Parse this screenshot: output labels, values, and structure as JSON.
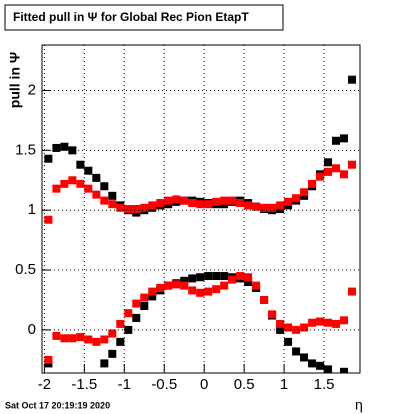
{
  "chart_data": {
    "type": "scatter",
    "title": "Fitted pull in  Ψ  for Global Rec Pion EtapT",
    "x_label": "η",
    "y_label": "pull in  Ψ",
    "footer": "Sat Oct 17 20:19:19 2020",
    "x": [
      -1.95,
      -1.85,
      -1.75,
      -1.65,
      -1.55,
      -1.45,
      -1.35,
      -1.25,
      -1.15,
      -1.05,
      -0.95,
      -0.85,
      -0.75,
      -0.65,
      -0.55,
      -0.45,
      -0.35,
      -0.25,
      -0.15,
      -0.05,
      0.05,
      0.15,
      0.25,
      0.35,
      0.45,
      0.55,
      0.65,
      0.75,
      0.85,
      0.95,
      1.05,
      1.15,
      1.25,
      1.35,
      1.45,
      1.55,
      1.65,
      1.75,
      1.85
    ],
    "series": [
      {
        "color": "#000000",
        "values": [
          1.43,
          1.52,
          1.53,
          1.5,
          1.38,
          1.33,
          1.27,
          1.2,
          1.12,
          1.04,
          1.0,
          0.98,
          1.0,
          1.02,
          1.04,
          1.05,
          1.07,
          1.08,
          1.08,
          1.07,
          1.06,
          1.05,
          1.05,
          1.07,
          1.08,
          1.06,
          1.03,
          1.01,
          1.0,
          1.01,
          1.04,
          1.08,
          1.12,
          1.2,
          1.3,
          1.4,
          1.58,
          1.6,
          2.09
        ]
      },
      {
        "color": "#ff0000",
        "values": [
          0.92,
          1.18,
          1.22,
          1.25,
          1.22,
          1.18,
          1.13,
          1.08,
          1.05,
          1.02,
          1.01,
          1.01,
          1.02,
          1.04,
          1.06,
          1.08,
          1.09,
          1.08,
          1.06,
          1.05,
          1.05,
          1.07,
          1.08,
          1.08,
          1.06,
          1.04,
          1.03,
          1.02,
          1.02,
          1.04,
          1.07,
          1.1,
          1.15,
          1.22,
          1.28,
          1.32,
          1.35,
          1.3,
          1.38
        ]
      },
      {
        "color": "#000000",
        "values": [
          -0.28,
          null,
          null,
          null,
          null,
          null,
          null,
          -0.28,
          -0.2,
          -0.1,
          0.0,
          0.1,
          0.2,
          0.28,
          0.33,
          0.37,
          0.39,
          0.41,
          0.43,
          0.44,
          0.45,
          0.45,
          0.45,
          0.44,
          0.43,
          0.4,
          0.35,
          0.25,
          0.12,
          0.0,
          -0.1,
          -0.18,
          -0.23,
          -0.28,
          -0.3,
          -0.33,
          null,
          -0.35,
          null
        ]
      },
      {
        "color": "#ff0000",
        "values": [
          -0.25,
          -0.05,
          -0.07,
          -0.07,
          -0.06,
          -0.08,
          -0.1,
          -0.08,
          -0.03,
          0.05,
          0.14,
          0.22,
          0.27,
          0.32,
          0.35,
          0.37,
          0.38,
          0.37,
          0.33,
          0.31,
          0.32,
          0.34,
          0.37,
          0.42,
          0.45,
          0.44,
          0.37,
          0.25,
          0.13,
          0.05,
          0.02,
          0.0,
          0.02,
          0.06,
          0.07,
          0.06,
          0.05,
          0.08,
          0.32
        ]
      }
    ],
    "xlim": [
      -2.03,
      1.95
    ],
    "ylim": [
      -0.36,
      2.38
    ],
    "xticks": [
      -2,
      -1.5,
      -1,
      -0.5,
      0,
      0.5,
      1,
      1.5
    ],
    "yticks": [
      0,
      0.5,
      1,
      1.5,
      2
    ],
    "grid": true
  }
}
